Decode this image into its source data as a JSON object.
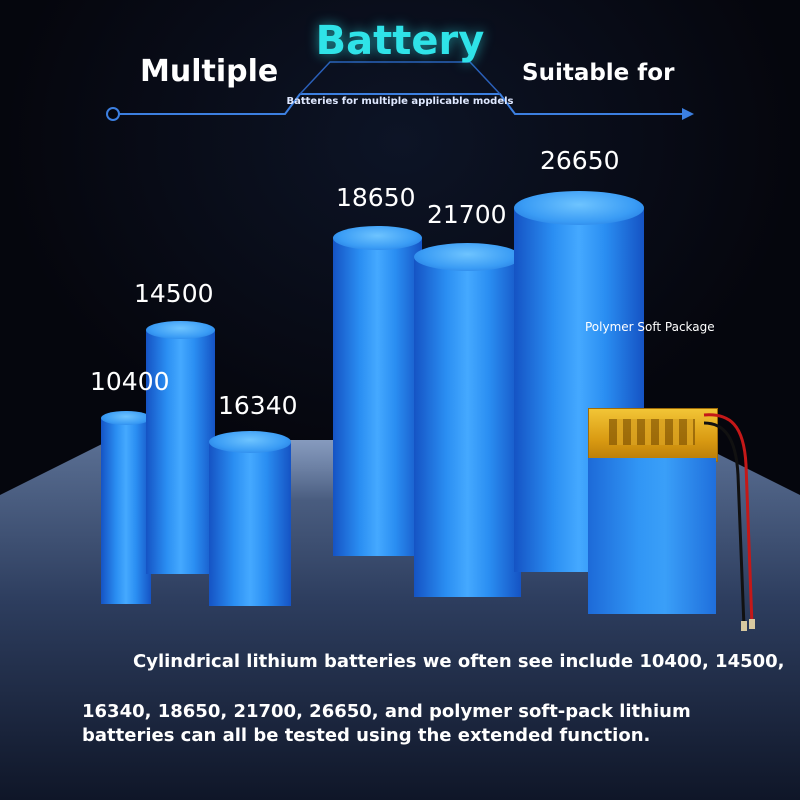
{
  "header": {
    "title": "Battery",
    "left_heading": "Multiple",
    "right_heading": "Suitable for",
    "subtitle": "Batteries for multiple applicable models"
  },
  "batteries": [
    {
      "model": "10400"
    },
    {
      "model": "14500"
    },
    {
      "model": "16340"
    },
    {
      "model": "18650"
    },
    {
      "model": "21700"
    },
    {
      "model": "26650"
    }
  ],
  "pouch": {
    "label": "Polymer Soft Package"
  },
  "description": {
    "line1": "Cylindrical lithium batteries we often see include 10400, 14500,",
    "line2": "16340, 18650, 21700, 26650, and polymer soft-pack lithium batteries can all be tested using the extended function."
  },
  "colors": {
    "title": "#2fe3e8",
    "battery_blue": "#2a8ef2",
    "pouch_gold": "#d99a12",
    "background": "#05060d"
  }
}
